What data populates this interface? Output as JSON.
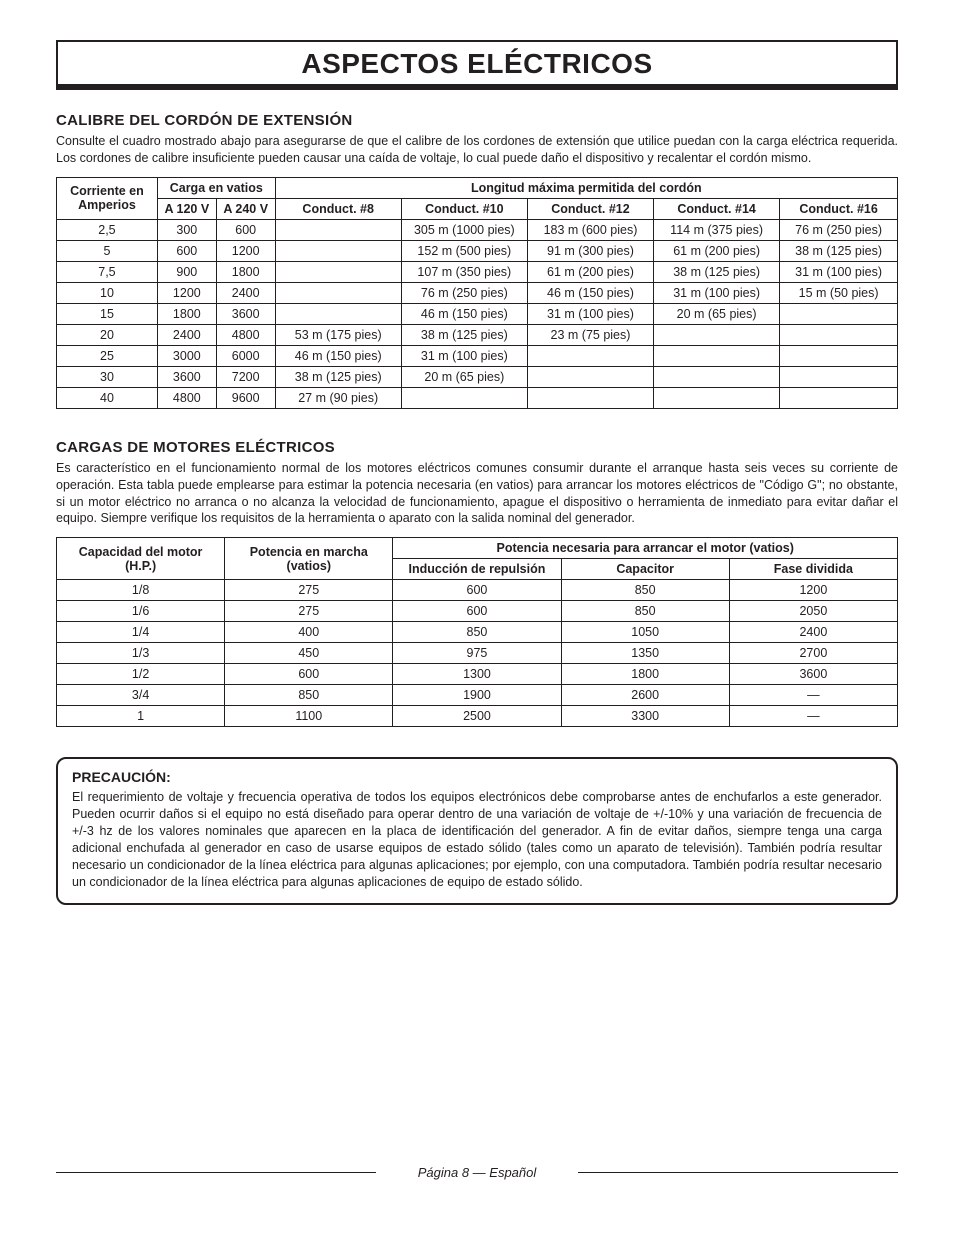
{
  "colors": {
    "text": "#231f20",
    "background": "#ffffff",
    "border": "#231f20"
  },
  "typography": {
    "base_font": "Arial",
    "title_size_pt": 28,
    "h2_size_pt": 15,
    "body_size_pt": 12.5
  },
  "title": "ASPECTOS ELÉCTRICOS",
  "section1": {
    "heading": "CALIBRE DEL CORDÓN DE EXTENSIÓN",
    "paragraph": "Consulte el cuadro mostrado abajo para asegurarse de que el calibre de los cordones de extensión que utilice puedan con la carga eléctrica requerida. Los cordones de calibre insuficiente pueden causar una caída de voltaje, lo cual puede daño el dispositivo y recalentar el cordón mismo."
  },
  "table1": {
    "type": "table",
    "header_group_left": "Corriente en Amperios",
    "header_group_mid": "Carga en vatios",
    "header_group_right": "Longitud máxima permitida del cordón",
    "sub_headers": [
      "A 120 V",
      "A 240 V",
      "Conduct. #8",
      "Conduct. #10",
      "Conduct. #12",
      "Conduct. #14",
      "Conduct. #16"
    ],
    "col_widths_pct": [
      12,
      7,
      7,
      15,
      15,
      15,
      15,
      14
    ],
    "rows": [
      [
        "2,5",
        "300",
        "600",
        "",
        "305 m (1000 pies)",
        "183 m (600 pies)",
        "114 m (375 pies)",
        "76 m (250 pies)"
      ],
      [
        "5",
        "600",
        "1200",
        "",
        "152 m (500 pies)",
        "91 m (300 pies)",
        "61 m (200 pies)",
        "38 m (125 pies)"
      ],
      [
        "7,5",
        "900",
        "1800",
        "",
        "107 m (350 pies)",
        "61 m (200 pies)",
        "38 m (125 pies)",
        "31 m (100 pies)"
      ],
      [
        "10",
        "1200",
        "2400",
        "",
        "76 m (250 pies)",
        "46 m (150 pies)",
        "31 m (100 pies)",
        "15 m (50 pies)"
      ],
      [
        "15",
        "1800",
        "3600",
        "",
        "46 m (150 pies)",
        "31 m (100 pies)",
        "20 m (65 pies)",
        ""
      ],
      [
        "20",
        "2400",
        "4800",
        "53 m (175 pies)",
        "38 m (125 pies)",
        "23 m (75 pies)",
        "",
        ""
      ],
      [
        "25",
        "3000",
        "6000",
        "46 m (150 pies)",
        "31 m (100 pies)",
        "",
        "",
        ""
      ],
      [
        "30",
        "3600",
        "7200",
        "38 m (125 pies)",
        "20 m (65 pies)",
        "",
        "",
        ""
      ],
      [
        "40",
        "4800",
        "9600",
        "27 m (90 pies)",
        "",
        "",
        "",
        ""
      ]
    ]
  },
  "section2": {
    "heading": "CARGAS DE MOTORES ELÉCTRICOS",
    "paragraph": "Es característico en el funcionamiento normal de los motores eléctricos comunes consumir durante el arranque hasta seis veces su corriente de operación. Esta tabla puede emplearse para estimar la potencia necesaria (en vatios) para arrancar los motores eléctricos de \"Código G\"; no obstante, si un motor eléctrico no arranca o no alcanza la velocidad de funcionamiento, apague el dispositivo o herramienta de inmediato para evitar dañar el equipo. Siempre verifique los requisitos de la herramienta o aparato con la salida nominal del generador."
  },
  "table2": {
    "type": "table",
    "header_left": "Capacidad del motor (H.P.)",
    "header_mid": "Potencia en marcha (vatios)",
    "header_right": "Potencia necesaria para arrancar el motor (vatios)",
    "sub_headers": [
      "Inducción de repulsión",
      "Capacitor",
      "Fase dividida"
    ],
    "col_widths_pct": [
      20,
      20,
      20,
      20,
      20
    ],
    "rows": [
      [
        "1/8",
        "275",
        "600",
        "850",
        "1200"
      ],
      [
        "1/6",
        "275",
        "600",
        "850",
        "2050"
      ],
      [
        "1/4",
        "400",
        "850",
        "1050",
        "2400"
      ],
      [
        "1/3",
        "450",
        "975",
        "1350",
        "2700"
      ],
      [
        "1/2",
        "600",
        "1300",
        "1800",
        "3600"
      ],
      [
        "3/4",
        "850",
        "1900",
        "2600",
        "—"
      ],
      [
        "1",
        "1100",
        "2500",
        "3300",
        "—"
      ]
    ]
  },
  "caution": {
    "heading": "PRECAUCIÓN:",
    "paragraph": "El requerimiento de voltaje y frecuencia operativa de todos los equipos electrónicos debe comprobarse antes de enchufarlos a este generador. Pueden ocurrir daños si el equipo no está diseñado para operar dentro de una variación de voltaje de +/-10% y una variación de frecuencia de +/-3 hz de los valores nominales que aparecen en la placa de identificación del generador. A fin de evitar daños, siempre tenga una carga adicional enchufada al generador en caso de usarse equipos de estado sólido (tales como un aparato de televisión). También podría resultar necesario un condicionador de la línea eléctrica para algunas aplicaciones; por ejemplo, con una computadora. También podría resultar necesario un condicionador de la línea eléctrica para algunas aplicaciones de equipo de estado sólido."
  },
  "footer": "Página 8 — Español"
}
